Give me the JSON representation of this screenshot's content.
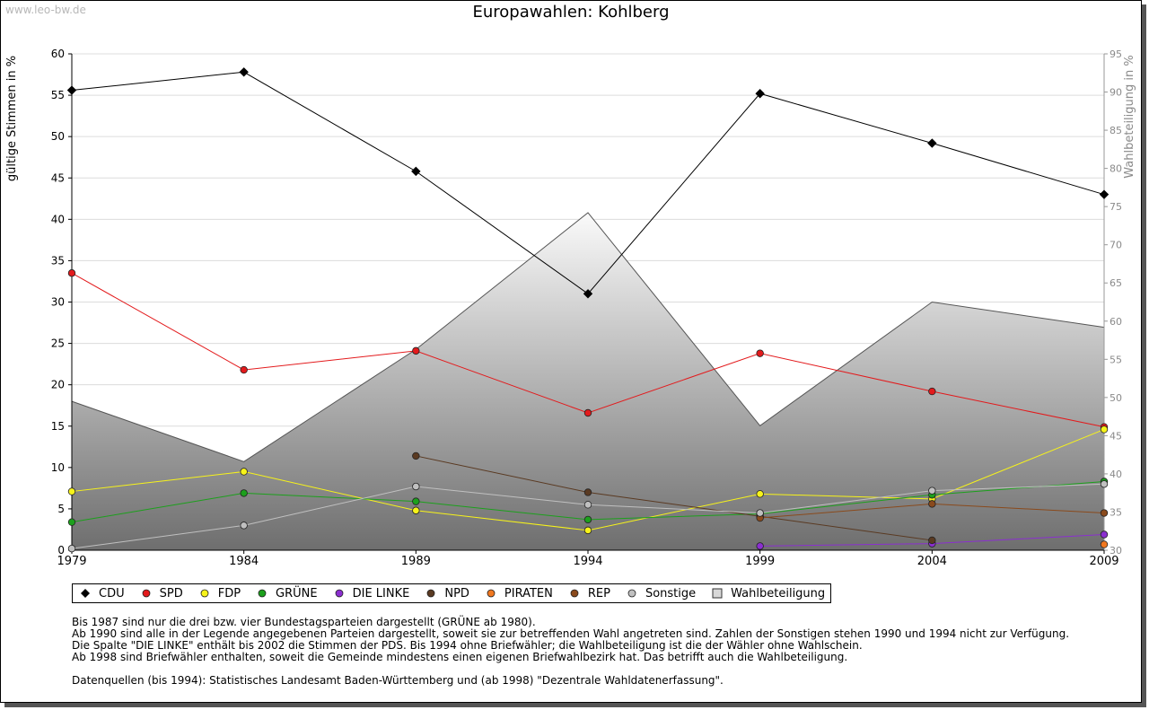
{
  "watermark": "www.leo-bw.de",
  "notes": {
    "line1": "Bis 1987 sind nur die drei bzw. vier Bundestagsparteien dargestellt (GRÜNE ab 1980).",
    "line2": "Ab 1990 sind alle in der Legende angegebenen Parteien dargestellt, soweit sie zur betreffenden Wahl angetreten sind. Zahlen der Sonstigen stehen 1990 und 1994 nicht zur Verfügung.",
    "line3": "Die Spalte \"DIE LINKE\" enthält bis 2002 die Stimmen der PDS. Bis 1994 ohne Briefwähler; die Wahlbeteiligung ist die der Wähler ohne Wahlschein.",
    "line4": "Ab 1998 sind Briefwähler enthalten, soweit die Gemeinde mindestens einen eigenen Briefwahlbezirk hat. Das betrifft auch die Wahlbeteiligung.",
    "sources": "Datenquellen (bis 1994): Statistisches Landesamt Baden-Württemberg und (ab 1998) \"Dezentrale Wahldatenerfassung\"."
  },
  "chart_data": {
    "type": "line",
    "title": "Europawahlen: Kohlberg",
    "xlabel": "",
    "ylabel": "gültige Stimmen in %",
    "y2label": "Wahlbeteiligung in %",
    "x": [
      1979,
      1984,
      1989,
      1994,
      1999,
      2004,
      2009
    ],
    "ylim": [
      0,
      60
    ],
    "y2lim": [
      30,
      95
    ],
    "yticks": [
      0,
      5,
      10,
      15,
      20,
      25,
      30,
      35,
      40,
      45,
      50,
      55,
      60
    ],
    "y2ticks": [
      30,
      35,
      40,
      45,
      50,
      55,
      60,
      65,
      70,
      75,
      80,
      85,
      90,
      95
    ],
    "grid": true,
    "legend_position": "bottom",
    "series": [
      {
        "name": "CDU",
        "color": "#000000",
        "values": [
          55.6,
          57.8,
          45.8,
          31.0,
          55.2,
          49.2,
          43.0
        ]
      },
      {
        "name": "SPD",
        "color": "#e31a1c",
        "values": [
          33.5,
          21.8,
          24.1,
          16.6,
          23.8,
          19.2,
          14.9
        ]
      },
      {
        "name": "FDP",
        "color": "#f7f31a",
        "values": [
          7.1,
          9.5,
          4.8,
          2.4,
          6.8,
          6.2,
          14.6
        ]
      },
      {
        "name": "GRÜNE",
        "color": "#1ca01c",
        "values": [
          3.4,
          6.9,
          5.9,
          3.7,
          4.4,
          6.7,
          8.3
        ]
      },
      {
        "name": "DIE LINKE",
        "color": "#8b2fd0",
        "values": [
          null,
          null,
          null,
          null,
          0.5,
          0.8,
          1.9
        ]
      },
      {
        "name": "NPD",
        "color": "#5a3a22",
        "values": [
          null,
          null,
          11.4,
          7.0,
          4.1,
          1.2,
          null
        ]
      },
      {
        "name": "PIRATEN",
        "color": "#f07820",
        "values": [
          null,
          null,
          null,
          null,
          null,
          null,
          0.7
        ]
      },
      {
        "name": "REP",
        "color": "#8a4a1c",
        "values": [
          null,
          null,
          null,
          null,
          3.9,
          5.6,
          4.5
        ]
      },
      {
        "name": "Sonstige",
        "color": "#c0c0c0",
        "values": [
          0.2,
          3.0,
          7.7,
          5.5,
          4.5,
          7.2,
          8.0
        ]
      },
      {
        "name": "Wahlbeteiligung",
        "color": "#b0b0b0",
        "axis": "right",
        "kind": "area",
        "values": [
          49.5,
          41.6,
          56.3,
          74.2,
          46.3,
          62.5,
          59.2
        ]
      }
    ]
  }
}
